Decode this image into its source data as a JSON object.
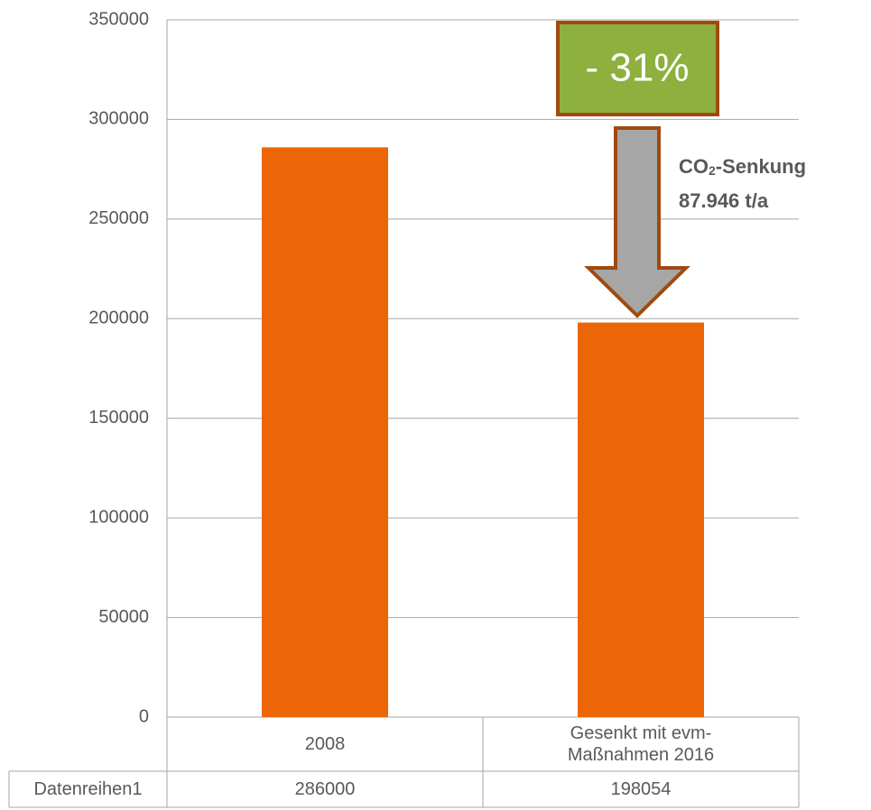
{
  "chart_data": {
    "type": "bar",
    "categories": [
      "2008",
      "Gesenkt mit evm-Maßnahmen 2016"
    ],
    "series": [
      {
        "name": "Datenreihen1",
        "color": "#ec6608",
        "values": [
          286000,
          198054
        ]
      }
    ],
    "ylim": [
      0,
      350000
    ],
    "yticks": [
      0,
      50000,
      100000,
      150000,
      200000,
      250000,
      300000,
      350000
    ],
    "grid": true,
    "annotations": {
      "box": "- 31%",
      "reduction": [
        "CO",
        "2",
        "-Senkung"
      ],
      "amount": "87.946 t/a"
    }
  }
}
